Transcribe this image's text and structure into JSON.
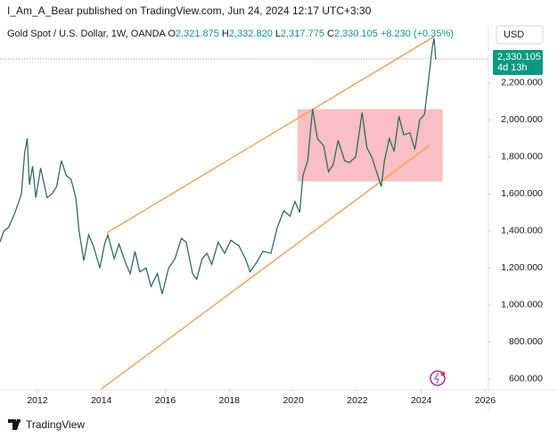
{
  "header": "I_Am_A_Bear published on TradingView.com, Jun 24, 2024 12:17 UTC+3:30",
  "footer": "TradingView",
  "chart_data": {
    "type": "line",
    "legend_title": "Gold Spot / U.S. Dollar, 1W, OANDA",
    "ohlc": [
      {
        "label": "O",
        "value": "2,321.875"
      },
      {
        "label": "H",
        "value": "2,332.820"
      },
      {
        "label": "L",
        "value": "2,317.775"
      },
      {
        "label": "C",
        "value": "2,330.105"
      }
    ],
    "change": "+8.230 (+0.35%)",
    "currency": "USD",
    "last_price": {
      "value": 2330.105,
      "label": "2,330.105"
    },
    "countdown": "4d 13h",
    "x": [
      2010.83,
      2010.95,
      2011.1,
      2011.3,
      2011.5,
      2011.6,
      2011.68,
      2011.75,
      2011.85,
      2011.95,
      2012.1,
      2012.3,
      2012.45,
      2012.6,
      2012.75,
      2012.9,
      2013.05,
      2013.2,
      2013.3,
      2013.45,
      2013.6,
      2013.75,
      2013.95,
      2014.1,
      2014.2,
      2014.4,
      2014.55,
      2014.75,
      2014.9,
      2015.05,
      2015.2,
      2015.4,
      2015.55,
      2015.75,
      2015.9,
      2016.1,
      2016.3,
      2016.5,
      2016.65,
      2016.85,
      2016.98,
      2017.15,
      2017.3,
      2017.45,
      2017.65,
      2017.85,
      2018.05,
      2018.3,
      2018.5,
      2018.65,
      2018.85,
      2019.05,
      2019.3,
      2019.5,
      2019.7,
      2019.9,
      2020.05,
      2020.2,
      2020.3,
      2020.45,
      2020.6,
      2020.75,
      2020.95,
      2021.1,
      2021.25,
      2021.4,
      2021.6,
      2021.75,
      2021.95,
      2022.15,
      2022.3,
      2022.45,
      2022.6,
      2022.75,
      2022.85,
      2023.0,
      2023.15,
      2023.3,
      2023.45,
      2023.65,
      2023.8,
      2023.95,
      2024.1,
      2024.25,
      2024.35,
      2024.4,
      2024.45,
      2024.48
    ],
    "series": [
      {
        "name": "Gold Spot / U.S. Dollar",
        "color": "#2f6e60",
        "values": [
          1340,
          1400,
          1420,
          1500,
          1600,
          1820,
          1900,
          1650,
          1750,
          1580,
          1740,
          1580,
          1600,
          1640,
          1780,
          1700,
          1680,
          1580,
          1400,
          1240,
          1380,
          1320,
          1200,
          1330,
          1380,
          1250,
          1330,
          1230,
          1170,
          1290,
          1180,
          1200,
          1100,
          1170,
          1060,
          1200,
          1250,
          1360,
          1340,
          1170,
          1140,
          1250,
          1280,
          1220,
          1340,
          1280,
          1350,
          1320,
          1250,
          1180,
          1230,
          1290,
          1280,
          1420,
          1510,
          1480,
          1560,
          1500,
          1700,
          1780,
          2060,
          1900,
          1860,
          1720,
          1760,
          1890,
          1780,
          1770,
          1800,
          2040,
          1850,
          1800,
          1720,
          1640,
          1780,
          1900,
          1830,
          2020,
          1920,
          1930,
          1840,
          2000,
          2030,
          2250,
          2400,
          2440,
          2330,
          2330.105
        ]
      }
    ],
    "trend_lines": [
      {
        "color": "#f7a35c",
        "x": [
          2014.17,
          2024.4
        ],
        "y": [
          1390,
          2450
        ]
      },
      {
        "color": "#f7a35c",
        "x": [
          2014.0,
          2024.26
        ],
        "y": [
          547,
          1863
        ]
      }
    ],
    "zone": {
      "color": "#f7a9b0",
      "x": [
        2020.13,
        2024.67
      ],
      "y": [
        1668,
        2058
      ]
    },
    "xlim": [
      2010.83,
      2026.07
    ],
    "ylim": [
      542,
      2513
    ],
    "xticks": [
      2012,
      2014,
      2016,
      2018,
      2020,
      2022,
      2024,
      2026
    ],
    "yticks": [
      {
        "value": 600,
        "label": "600.000"
      },
      {
        "value": 800,
        "label": "800.000"
      },
      {
        "value": 1000,
        "label": "1,000.000"
      },
      {
        "value": 1200,
        "label": "1,200.000"
      },
      {
        "value": 1400,
        "label": "1,400.000"
      },
      {
        "value": 1600,
        "label": "1,600.000"
      },
      {
        "value": 1800,
        "label": "1,800.000"
      },
      {
        "value": 2000,
        "label": "2,000.000"
      },
      {
        "value": 2200,
        "label": "2,200.000"
      }
    ]
  }
}
